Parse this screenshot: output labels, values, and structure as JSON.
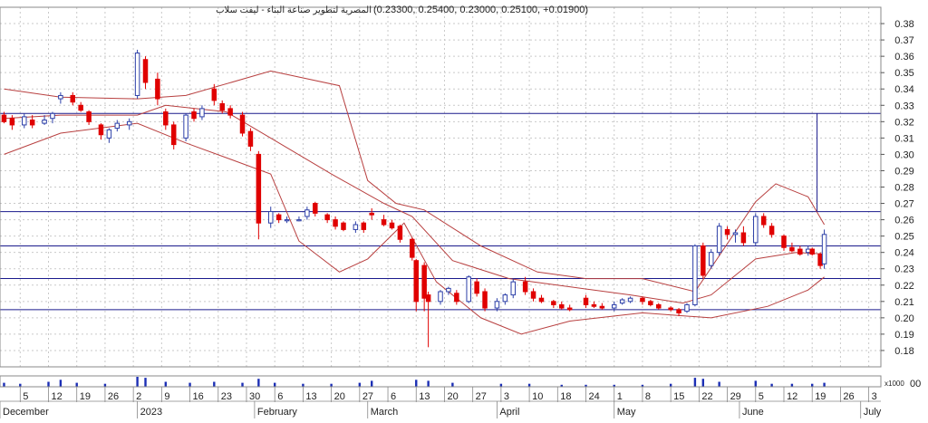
{
  "chart_data": {
    "type": "candlestick",
    "title": "المصرية لتطوير صناعة البناء - ليفت سلاب",
    "ohlc_text": "(0.23300, 0.25400, 0.23000, 0.25100, +0.01900)",
    "ylim": [
      0.17,
      0.39
    ],
    "y_ticks": [
      "0.38",
      "0.37",
      "0.36",
      "0.35",
      "0.34",
      "0.33",
      "0.32",
      "0.31",
      "0.30",
      "0.29",
      "0.28",
      "0.27",
      "0.26",
      "0.25",
      "0.24",
      "0.23",
      "0.22",
      "0.21",
      "0.20",
      "0.19",
      "0.18"
    ],
    "volume_label": "x1000",
    "volume_tick": "00",
    "day_ticks": [
      "5",
      "12",
      "19",
      "26",
      "2",
      "9",
      "16",
      "23",
      "30",
      "6",
      "13",
      "20",
      "27",
      "6",
      "13",
      "20",
      "27",
      "3",
      "10",
      "18",
      "24",
      "1",
      "8",
      "15",
      "22",
      "29",
      "5",
      "12",
      "19",
      "26",
      "3"
    ],
    "month_labels": [
      "December",
      "2023",
      "February",
      "March",
      "April",
      "May",
      "June",
      "July"
    ],
    "horizontal_levels": [
      0.325,
      0.265,
      0.244,
      0.224,
      0.205
    ],
    "vertical_marker": {
      "x_day": "2023-06-22",
      "from": 0.265,
      "to": 0.325
    },
    "series_ma": [
      {
        "date": "2022-12-01",
        "v": 0.322
      },
      {
        "date": "2022-12-15",
        "v": 0.324
      },
      {
        "date": "2023-01-03",
        "v": 0.324
      },
      {
        "date": "2023-01-10",
        "v": 0.33
      },
      {
        "date": "2023-01-25",
        "v": 0.326
      },
      {
        "date": "2023-02-05",
        "v": 0.31
      },
      {
        "date": "2023-02-20",
        "v": 0.288
      },
      {
        "date": "2023-03-05",
        "v": 0.27
      },
      {
        "date": "2023-03-12",
        "v": 0.262
      },
      {
        "date": "2023-03-22",
        "v": 0.235
      },
      {
        "date": "2023-04-05",
        "v": 0.224
      },
      {
        "date": "2023-04-20",
        "v": 0.219
      },
      {
        "date": "2023-05-05",
        "v": 0.214
      },
      {
        "date": "2023-05-18",
        "v": 0.209
      },
      {
        "date": "2023-05-25",
        "v": 0.214
      },
      {
        "date": "2023-06-05",
        "v": 0.236
      },
      {
        "date": "2023-06-15",
        "v": 0.24
      },
      {
        "date": "2023-06-22",
        "v": 0.239
      }
    ],
    "series_upper": [
      {
        "date": "2022-12-01",
        "v": 0.34
      },
      {
        "date": "2022-12-15",
        "v": 0.335
      },
      {
        "date": "2023-01-03",
        "v": 0.334
      },
      {
        "date": "2023-01-15",
        "v": 0.336
      },
      {
        "date": "2023-02-05",
        "v": 0.351
      },
      {
        "date": "2023-02-22",
        "v": 0.342
      },
      {
        "date": "2023-03-01",
        "v": 0.284
      },
      {
        "date": "2023-03-08",
        "v": 0.27
      },
      {
        "date": "2023-03-15",
        "v": 0.266
      },
      {
        "date": "2023-03-29",
        "v": 0.244
      },
      {
        "date": "2023-04-12",
        "v": 0.228
      },
      {
        "date": "2023-04-24",
        "v": 0.224
      },
      {
        "date": "2023-05-08",
        "v": 0.224
      },
      {
        "date": "2023-05-21",
        "v": 0.216
      },
      {
        "date": "2023-06-05",
        "v": 0.271
      },
      {
        "date": "2023-06-10",
        "v": 0.282
      },
      {
        "date": "2023-06-18",
        "v": 0.274
      },
      {
        "date": "2023-06-22",
        "v": 0.257
      }
    ],
    "series_lower": [
      {
        "date": "2022-12-01",
        "v": 0.3
      },
      {
        "date": "2022-12-15",
        "v": 0.313
      },
      {
        "date": "2023-01-03",
        "v": 0.319
      },
      {
        "date": "2023-01-15",
        "v": 0.307
      },
      {
        "date": "2023-02-05",
        "v": 0.288
      },
      {
        "date": "2023-02-12",
        "v": 0.247
      },
      {
        "date": "2023-02-22",
        "v": 0.228
      },
      {
        "date": "2023-03-01",
        "v": 0.236
      },
      {
        "date": "2023-03-10",
        "v": 0.258
      },
      {
        "date": "2023-03-18",
        "v": 0.222
      },
      {
        "date": "2023-03-29",
        "v": 0.2
      },
      {
        "date": "2023-04-08",
        "v": 0.19
      },
      {
        "date": "2023-04-20",
        "v": 0.198
      },
      {
        "date": "2023-05-08",
        "v": 0.203
      },
      {
        "date": "2023-05-25",
        "v": 0.2
      },
      {
        "date": "2023-06-08",
        "v": 0.207
      },
      {
        "date": "2023-06-18",
        "v": 0.217
      },
      {
        "date": "2023-06-22",
        "v": 0.225
      }
    ],
    "candles": [
      {
        "date": "2022-12-01",
        "o": 0.324,
        "h": 0.326,
        "l": 0.319,
        "c": 0.32
      },
      {
        "date": "2022-12-03",
        "o": 0.322,
        "h": 0.324,
        "l": 0.315,
        "c": 0.318
      },
      {
        "date": "2022-12-06",
        "o": 0.318,
        "h": 0.325,
        "l": 0.316,
        "c": 0.323
      },
      {
        "date": "2022-12-08",
        "o": 0.321,
        "h": 0.324,
        "l": 0.316,
        "c": 0.318
      },
      {
        "date": "2022-12-11",
        "o": 0.319,
        "h": 0.324,
        "l": 0.318,
        "c": 0.321
      },
      {
        "date": "2022-12-13",
        "o": 0.322,
        "h": 0.326,
        "l": 0.319,
        "c": 0.325
      },
      {
        "date": "2022-12-15",
        "o": 0.334,
        "h": 0.338,
        "l": 0.331,
        "c": 0.336
      },
      {
        "date": "2022-12-18",
        "o": 0.336,
        "h": 0.338,
        "l": 0.33,
        "c": 0.332
      },
      {
        "date": "2022-12-20",
        "o": 0.33,
        "h": 0.332,
        "l": 0.326,
        "c": 0.327
      },
      {
        "date": "2022-12-22",
        "o": 0.326,
        "h": 0.327,
        "l": 0.318,
        "c": 0.32
      },
      {
        "date": "2022-12-25",
        "o": 0.318,
        "h": 0.319,
        "l": 0.309,
        "c": 0.312
      },
      {
        "date": "2022-12-27",
        "o": 0.31,
        "h": 0.316,
        "l": 0.307,
        "c": 0.315
      },
      {
        "date": "2022-12-29",
        "o": 0.316,
        "h": 0.321,
        "l": 0.314,
        "c": 0.319
      },
      {
        "date": "2023-01-01",
        "o": 0.318,
        "h": 0.322,
        "l": 0.315,
        "c": 0.32
      },
      {
        "date": "2023-01-03",
        "o": 0.336,
        "h": 0.364,
        "l": 0.334,
        "c": 0.362
      },
      {
        "date": "2023-01-05",
        "o": 0.358,
        "h": 0.36,
        "l": 0.34,
        "c": 0.344
      },
      {
        "date": "2023-01-08",
        "o": 0.346,
        "h": 0.35,
        "l": 0.33,
        "c": 0.334
      },
      {
        "date": "2023-01-10",
        "o": 0.326,
        "h": 0.328,
        "l": 0.315,
        "c": 0.318
      },
      {
        "date": "2023-01-12",
        "o": 0.318,
        "h": 0.32,
        "l": 0.303,
        "c": 0.306
      },
      {
        "date": "2023-01-15",
        "o": 0.31,
        "h": 0.325,
        "l": 0.308,
        "c": 0.324
      },
      {
        "date": "2023-01-17",
        "o": 0.326,
        "h": 0.328,
        "l": 0.32,
        "c": 0.322
      },
      {
        "date": "2023-01-19",
        "o": 0.323,
        "h": 0.33,
        "l": 0.321,
        "c": 0.328
      },
      {
        "date": "2023-01-22",
        "o": 0.34,
        "h": 0.343,
        "l": 0.33,
        "c": 0.333
      },
      {
        "date": "2023-01-24",
        "o": 0.331,
        "h": 0.333,
        "l": 0.325,
        "c": 0.327
      },
      {
        "date": "2023-01-26",
        "o": 0.328,
        "h": 0.33,
        "l": 0.322,
        "c": 0.324
      },
      {
        "date": "2023-01-29",
        "o": 0.324,
        "h": 0.326,
        "l": 0.311,
        "c": 0.313
      },
      {
        "date": "2023-01-31",
        "o": 0.314,
        "h": 0.316,
        "l": 0.302,
        "c": 0.305
      },
      {
        "date": "2023-02-02",
        "o": 0.3,
        "h": 0.302,
        "l": 0.248,
        "c": 0.258
      },
      {
        "date": "2023-02-05",
        "o": 0.258,
        "h": 0.268,
        "l": 0.255,
        "c": 0.265
      },
      {
        "date": "2023-02-07",
        "o": 0.263,
        "h": 0.264,
        "l": 0.258,
        "c": 0.26
      },
      {
        "date": "2023-02-09",
        "o": 0.26,
        "h": 0.262,
        "l": 0.258,
        "c": 0.26
      },
      {
        "date": "2023-02-12",
        "o": 0.26,
        "h": 0.262,
        "l": 0.259,
        "c": 0.26
      },
      {
        "date": "2023-02-14",
        "o": 0.262,
        "h": 0.268,
        "l": 0.26,
        "c": 0.266
      },
      {
        "date": "2023-02-16",
        "o": 0.27,
        "h": 0.271,
        "l": 0.262,
        "c": 0.264
      },
      {
        "date": "2023-02-19",
        "o": 0.263,
        "h": 0.264,
        "l": 0.258,
        "c": 0.26
      },
      {
        "date": "2023-02-21",
        "o": 0.26,
        "h": 0.262,
        "l": 0.254,
        "c": 0.256
      },
      {
        "date": "2023-02-23",
        "o": 0.258,
        "h": 0.259,
        "l": 0.253,
        "c": 0.254
      },
      {
        "date": "2023-02-26",
        "o": 0.254,
        "h": 0.259,
        "l": 0.252,
        "c": 0.257
      },
      {
        "date": "2023-02-28",
        "o": 0.258,
        "h": 0.259,
        "l": 0.252,
        "c": 0.254
      },
      {
        "date": "2023-03-02",
        "o": 0.264,
        "h": 0.267,
        "l": 0.26,
        "c": 0.263
      },
      {
        "date": "2023-03-05",
        "o": 0.26,
        "h": 0.263,
        "l": 0.256,
        "c": 0.257
      },
      {
        "date": "2023-03-07",
        "o": 0.258,
        "h": 0.26,
        "l": 0.254,
        "c": 0.255
      },
      {
        "date": "2023-03-09",
        "o": 0.256,
        "h": 0.257,
        "l": 0.246,
        "c": 0.248
      },
      {
        "date": "2023-03-12",
        "o": 0.248,
        "h": 0.249,
        "l": 0.235,
        "c": 0.237
      },
      {
        "date": "2023-03-13",
        "o": 0.235,
        "h": 0.236,
        "l": 0.204,
        "c": 0.21
      },
      {
        "date": "2023-03-15",
        "o": 0.232,
        "h": 0.234,
        "l": 0.204,
        "c": 0.212
      },
      {
        "date": "2023-03-16",
        "o": 0.214,
        "h": 0.216,
        "l": 0.182,
        "c": 0.21
      },
      {
        "date": "2023-03-19",
        "o": 0.21,
        "h": 0.217,
        "l": 0.208,
        "c": 0.216
      },
      {
        "date": "2023-03-21",
        "o": 0.216,
        "h": 0.219,
        "l": 0.214,
        "c": 0.218
      },
      {
        "date": "2023-03-23",
        "o": 0.215,
        "h": 0.217,
        "l": 0.208,
        "c": 0.21
      },
      {
        "date": "2023-03-26",
        "o": 0.21,
        "h": 0.226,
        "l": 0.209,
        "c": 0.225
      },
      {
        "date": "2023-03-28",
        "o": 0.222,
        "h": 0.224,
        "l": 0.213,
        "c": 0.215
      },
      {
        "date": "2023-03-30",
        "o": 0.216,
        "h": 0.218,
        "l": 0.204,
        "c": 0.206
      },
      {
        "date": "2023-04-02",
        "o": 0.206,
        "h": 0.212,
        "l": 0.204,
        "c": 0.21
      },
      {
        "date": "2023-04-04",
        "o": 0.21,
        "h": 0.215,
        "l": 0.208,
        "c": 0.214
      },
      {
        "date": "2023-04-06",
        "o": 0.214,
        "h": 0.224,
        "l": 0.212,
        "c": 0.222
      },
      {
        "date": "2023-04-09",
        "o": 0.222,
        "h": 0.225,
        "l": 0.214,
        "c": 0.216
      },
      {
        "date": "2023-04-11",
        "o": 0.216,
        "h": 0.218,
        "l": 0.21,
        "c": 0.212
      },
      {
        "date": "2023-04-13",
        "o": 0.212,
        "h": 0.214,
        "l": 0.209,
        "c": 0.21
      },
      {
        "date": "2023-04-16",
        "o": 0.21,
        "h": 0.211,
        "l": 0.206,
        "c": 0.208
      },
      {
        "date": "2023-04-18",
        "o": 0.208,
        "h": 0.21,
        "l": 0.205,
        "c": 0.206
      },
      {
        "date": "2023-04-20",
        "o": 0.206,
        "h": 0.208,
        "l": 0.204,
        "c": 0.205
      },
      {
        "date": "2023-04-24",
        "o": 0.212,
        "h": 0.214,
        "l": 0.206,
        "c": 0.208
      },
      {
        "date": "2023-04-26",
        "o": 0.208,
        "h": 0.21,
        "l": 0.206,
        "c": 0.207
      },
      {
        "date": "2023-04-28",
        "o": 0.207,
        "h": 0.209,
        "l": 0.205,
        "c": 0.206
      },
      {
        "date": "2023-05-01",
        "o": 0.206,
        "h": 0.21,
        "l": 0.204,
        "c": 0.208
      },
      {
        "date": "2023-05-03",
        "o": 0.209,
        "h": 0.212,
        "l": 0.208,
        "c": 0.211
      },
      {
        "date": "2023-05-05",
        "o": 0.21,
        "h": 0.213,
        "l": 0.209,
        "c": 0.212
      },
      {
        "date": "2023-05-08",
        "o": 0.212,
        "h": 0.213,
        "l": 0.208,
        "c": 0.21
      },
      {
        "date": "2023-05-10",
        "o": 0.21,
        "h": 0.211,
        "l": 0.207,
        "c": 0.208
      },
      {
        "date": "2023-05-12",
        "o": 0.208,
        "h": 0.209,
        "l": 0.205,
        "c": 0.206
      },
      {
        "date": "2023-05-15",
        "o": 0.206,
        "h": 0.207,
        "l": 0.204,
        "c": 0.205
      },
      {
        "date": "2023-05-17",
        "o": 0.205,
        "h": 0.206,
        "l": 0.201,
        "c": 0.203
      },
      {
        "date": "2023-05-19",
        "o": 0.204,
        "h": 0.209,
        "l": 0.203,
        "c": 0.208
      },
      {
        "date": "2023-05-21",
        "o": 0.208,
        "h": 0.245,
        "l": 0.207,
        "c": 0.244
      },
      {
        "date": "2023-05-23",
        "o": 0.244,
        "h": 0.246,
        "l": 0.224,
        "c": 0.226
      },
      {
        "date": "2023-05-25",
        "o": 0.232,
        "h": 0.242,
        "l": 0.23,
        "c": 0.24
      },
      {
        "date": "2023-05-27",
        "o": 0.24,
        "h": 0.258,
        "l": 0.238,
        "c": 0.256
      },
      {
        "date": "2023-05-29",
        "o": 0.254,
        "h": 0.256,
        "l": 0.248,
        "c": 0.251
      },
      {
        "date": "2023-05-31",
        "o": 0.251,
        "h": 0.254,
        "l": 0.246,
        "c": 0.252
      },
      {
        "date": "2023-06-02",
        "o": 0.252,
        "h": 0.256,
        "l": 0.244,
        "c": 0.246
      },
      {
        "date": "2023-06-05",
        "o": 0.246,
        "h": 0.264,
        "l": 0.244,
        "c": 0.262
      },
      {
        "date": "2023-06-07",
        "o": 0.262,
        "h": 0.264,
        "l": 0.255,
        "c": 0.257
      },
      {
        "date": "2023-06-09",
        "o": 0.256,
        "h": 0.258,
        "l": 0.249,
        "c": 0.251
      },
      {
        "date": "2023-06-12",
        "o": 0.25,
        "h": 0.251,
        "l": 0.241,
        "c": 0.243
      },
      {
        "date": "2023-06-14",
        "o": 0.243,
        "h": 0.246,
        "l": 0.24,
        "c": 0.241
      },
      {
        "date": "2023-06-16",
        "o": 0.242,
        "h": 0.244,
        "l": 0.238,
        "c": 0.239
      },
      {
        "date": "2023-06-18",
        "o": 0.24,
        "h": 0.244,
        "l": 0.238,
        "c": 0.242
      },
      {
        "date": "2023-06-19",
        "o": 0.242,
        "h": 0.243,
        "l": 0.238,
        "c": 0.239
      },
      {
        "date": "2023-06-21",
        "o": 0.239,
        "h": 0.24,
        "l": 0.23,
        "c": 0.232
      },
      {
        "date": "2023-06-22",
        "o": 0.233,
        "h": 0.254,
        "l": 0.23,
        "c": 0.251
      }
    ],
    "volume": [
      {
        "date": "2022-12-01",
        "v": 0.4
      },
      {
        "date": "2022-12-05",
        "v": 0.3
      },
      {
        "date": "2022-12-12",
        "v": 0.5
      },
      {
        "date": "2022-12-15",
        "v": 0.7
      },
      {
        "date": "2022-12-19",
        "v": 0.4
      },
      {
        "date": "2022-12-26",
        "v": 0.3
      },
      {
        "date": "2023-01-03",
        "v": 1.0
      },
      {
        "date": "2023-01-05",
        "v": 0.9
      },
      {
        "date": "2023-01-10",
        "v": 0.5
      },
      {
        "date": "2023-01-16",
        "v": 0.4
      },
      {
        "date": "2023-01-22",
        "v": 0.5
      },
      {
        "date": "2023-01-29",
        "v": 0.4
      },
      {
        "date": "2023-02-02",
        "v": 0.8
      },
      {
        "date": "2023-02-06",
        "v": 0.4
      },
      {
        "date": "2023-02-13",
        "v": 0.3
      },
      {
        "date": "2023-02-20",
        "v": 0.3
      },
      {
        "date": "2023-02-27",
        "v": 0.4
      },
      {
        "date": "2023-03-02",
        "v": 0.6
      },
      {
        "date": "2023-03-13",
        "v": 0.7
      },
      {
        "date": "2023-03-16",
        "v": 0.6
      },
      {
        "date": "2023-03-22",
        "v": 0.4
      },
      {
        "date": "2023-04-03",
        "v": 0.3
      },
      {
        "date": "2023-04-10",
        "v": 0.3
      },
      {
        "date": "2023-04-18",
        "v": 0.2
      },
      {
        "date": "2023-04-24",
        "v": 0.2
      },
      {
        "date": "2023-05-01",
        "v": 0.2
      },
      {
        "date": "2023-05-08",
        "v": 0.2
      },
      {
        "date": "2023-05-15",
        "v": 0.3
      },
      {
        "date": "2023-05-21",
        "v": 0.9
      },
      {
        "date": "2023-05-23",
        "v": 0.8
      },
      {
        "date": "2023-05-27",
        "v": 0.5
      },
      {
        "date": "2023-06-05",
        "v": 0.6
      },
      {
        "date": "2023-06-09",
        "v": 0.3
      },
      {
        "date": "2023-06-14",
        "v": 0.3
      },
      {
        "date": "2023-06-19",
        "v": 0.3
      },
      {
        "date": "2023-06-22",
        "v": 0.4
      }
    ],
    "colors": {
      "up": "#ffffff",
      "up_stroke": "#2c3fa8",
      "down": "#e00000",
      "band": "#b84040",
      "level": "#1a1a8c",
      "volume": "#1c2fb5",
      "grid": "#c9c9c9"
    },
    "grid": true,
    "x_range": [
      "2022-11-30",
      "2023-07-06"
    ]
  }
}
